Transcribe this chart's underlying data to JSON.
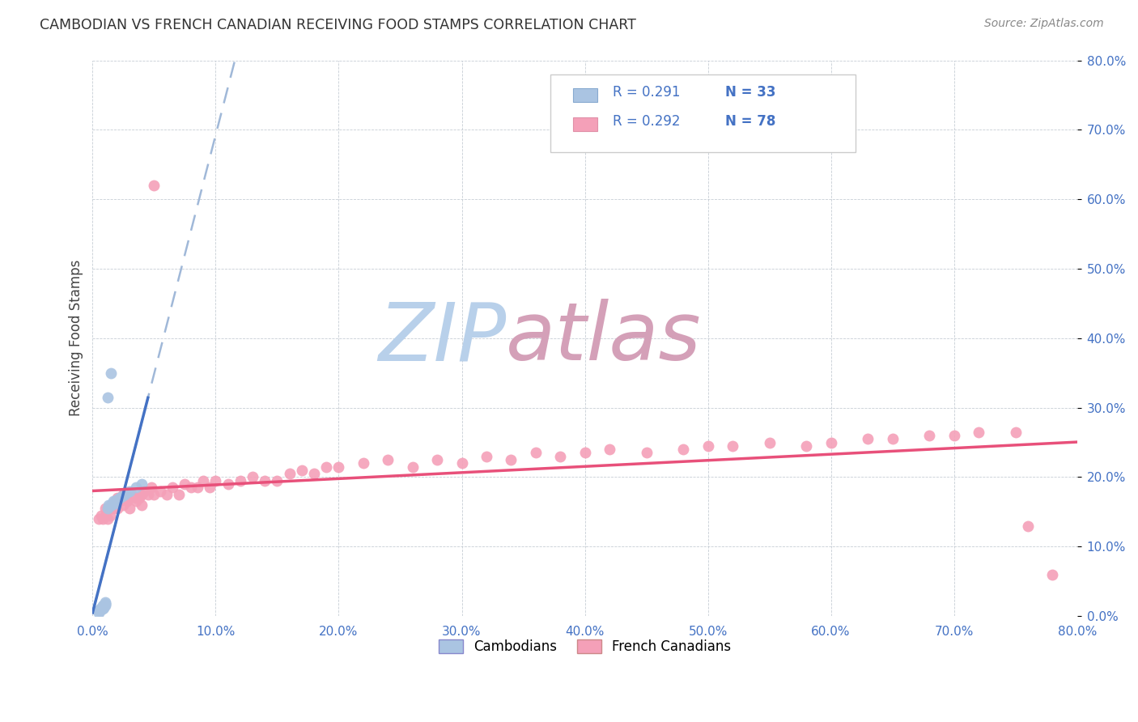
{
  "title": "CAMBODIAN VS FRENCH CANADIAN RECEIVING FOOD STAMPS CORRELATION CHART",
  "source": "Source: ZipAtlas.com",
  "ylabel": "Receiving Food Stamps",
  "xlim": [
    0.0,
    0.8
  ],
  "ylim": [
    0.0,
    0.8
  ],
  "xticks": [
    0.0,
    0.1,
    0.2,
    0.3,
    0.4,
    0.5,
    0.6,
    0.7,
    0.8
  ],
  "yticks": [
    0.0,
    0.1,
    0.2,
    0.3,
    0.4,
    0.5,
    0.6,
    0.7,
    0.8
  ],
  "tick_color": "#4472c4",
  "cambodian_dot_color": "#aac4e2",
  "french_dot_color": "#f4a0b8",
  "cambodian_line_color": "#4472c4",
  "french_line_color": "#e8507a",
  "dashed_line_color": "#a0b8d8",
  "legend_r_cambodian": "R = 0.291",
  "legend_n_cambodian": "N = 33",
  "legend_r_french": "R = 0.292",
  "legend_n_french": "N = 78",
  "legend_label_cambodian": "Cambodians",
  "legend_label_french": "French Canadians",
  "watermark_zip": "ZIP",
  "watermark_atlas": "atlas",
  "watermark_color_zip": "#b8d4ee",
  "watermark_color_atlas": "#c8a0b8",
  "cambodian_x": [
    0.005,
    0.005,
    0.006,
    0.006,
    0.007,
    0.007,
    0.008,
    0.008,
    0.008,
    0.009,
    0.009,
    0.01,
    0.01,
    0.01,
    0.01,
    0.012,
    0.013,
    0.014,
    0.015,
    0.016,
    0.017,
    0.018,
    0.019,
    0.02,
    0.022,
    0.024,
    0.026,
    0.028,
    0.03,
    0.035,
    0.04,
    0.015,
    0.012
  ],
  "cambodian_y": [
    0.005,
    0.008,
    0.008,
    0.01,
    0.01,
    0.012,
    0.01,
    0.012,
    0.015,
    0.012,
    0.015,
    0.015,
    0.017,
    0.018,
    0.02,
    0.155,
    0.16,
    0.158,
    0.16,
    0.162,
    0.165,
    0.162,
    0.165,
    0.168,
    0.17,
    0.172,
    0.175,
    0.178,
    0.18,
    0.185,
    0.19,
    0.35,
    0.315
  ],
  "french_x": [
    0.005,
    0.007,
    0.008,
    0.01,
    0.01,
    0.012,
    0.012,
    0.014,
    0.015,
    0.015,
    0.017,
    0.018,
    0.018,
    0.02,
    0.02,
    0.022,
    0.025,
    0.025,
    0.028,
    0.03,
    0.03,
    0.032,
    0.035,
    0.035,
    0.038,
    0.04,
    0.04,
    0.042,
    0.045,
    0.048,
    0.05,
    0.05,
    0.055,
    0.06,
    0.065,
    0.07,
    0.075,
    0.08,
    0.085,
    0.09,
    0.095,
    0.1,
    0.11,
    0.12,
    0.13,
    0.14,
    0.15,
    0.16,
    0.17,
    0.18,
    0.19,
    0.2,
    0.22,
    0.24,
    0.26,
    0.28,
    0.3,
    0.32,
    0.34,
    0.36,
    0.38,
    0.4,
    0.42,
    0.45,
    0.48,
    0.5,
    0.52,
    0.55,
    0.58,
    0.6,
    0.63,
    0.65,
    0.68,
    0.7,
    0.72,
    0.75,
    0.76,
    0.78
  ],
  "french_y": [
    0.14,
    0.145,
    0.14,
    0.145,
    0.155,
    0.14,
    0.155,
    0.145,
    0.155,
    0.16,
    0.155,
    0.16,
    0.165,
    0.155,
    0.17,
    0.165,
    0.16,
    0.175,
    0.165,
    0.155,
    0.17,
    0.175,
    0.165,
    0.17,
    0.17,
    0.16,
    0.175,
    0.18,
    0.175,
    0.185,
    0.175,
    0.62,
    0.18,
    0.175,
    0.185,
    0.175,
    0.19,
    0.185,
    0.185,
    0.195,
    0.185,
    0.195,
    0.19,
    0.195,
    0.2,
    0.195,
    0.195,
    0.205,
    0.21,
    0.205,
    0.215,
    0.215,
    0.22,
    0.225,
    0.215,
    0.225,
    0.22,
    0.23,
    0.225,
    0.235,
    0.23,
    0.235,
    0.24,
    0.235,
    0.24,
    0.245,
    0.245,
    0.25,
    0.245,
    0.25,
    0.255,
    0.255,
    0.26,
    0.26,
    0.265,
    0.265,
    0.13,
    0.06
  ],
  "cam_trend_slope": 2.8,
  "cam_trend_intercept": 0.085,
  "fr_trend_slope": 0.185,
  "fr_trend_intercept": 0.145
}
